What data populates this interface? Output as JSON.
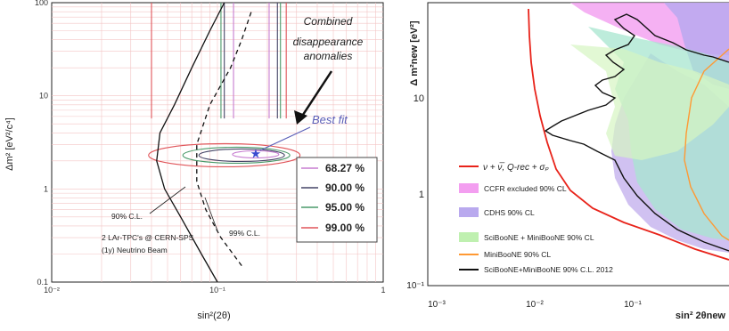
{
  "chart_data": [
    {
      "type": "line",
      "xlabel": "sin²(2θ)",
      "ylabel": "Δm² [eV²/c⁴]",
      "xscale": "log",
      "yscale": "log",
      "xlim": [
        0.01,
        1
      ],
      "ylim": [
        0.1,
        100
      ],
      "x_tick_labels": [
        "10⁻²",
        "10⁻¹",
        "1"
      ],
      "y_tick_labels": [
        "0.1",
        "1",
        "10",
        "100"
      ],
      "grid": true,
      "legend_position": "center-right",
      "legend": [
        {
          "label": "68.27 %",
          "color": "#c77dd1"
        },
        {
          "label": "90.00 %",
          "color": "#444466"
        },
        {
          "label": "95.00 %",
          "color": "#4a9a6a"
        },
        {
          "label": "99.00 %",
          "color": "#e0555a"
        }
      ],
      "annotations": {
        "anomalies": [
          "Combined",
          "disappearance",
          "anomalies"
        ],
        "best_fit": "Best fit",
        "cl90": "90% C.L.",
        "cl99": "99% C.L.",
        "experiment": [
          "2 LAr-TPC's @ CERN-SPS",
          "(1y) Neutrino Beam"
        ]
      },
      "best_fit_point": {
        "x": 0.17,
        "y": 2.4
      },
      "series": [
        {
          "name": "90% C.L.",
          "style": "solid",
          "color": "#111111",
          "points": [
            [
              0.1,
              0.1
            ],
            [
              0.08,
              0.2
            ],
            [
              0.06,
              0.5
            ],
            [
              0.048,
              1.0
            ],
            [
              0.043,
              2.0
            ],
            [
              0.045,
              4.0
            ],
            [
              0.055,
              8.0
            ],
            [
              0.07,
              20
            ],
            [
              0.09,
              50
            ],
            [
              0.11,
              100
            ]
          ]
        },
        {
          "name": "99% C.L.",
          "style": "dashed",
          "color": "#111111",
          "points": [
            [
              0.14,
              0.15
            ],
            [
              0.105,
              0.3
            ],
            [
              0.085,
              0.6
            ],
            [
              0.075,
              1.2
            ],
            [
              0.075,
              3.0
            ],
            [
              0.09,
              8.0
            ],
            [
              0.12,
              20
            ],
            [
              0.14,
              40
            ],
            [
              0.16,
              80
            ]
          ]
        }
      ]
    },
    {
      "type": "area",
      "xlabel": "sin² 2θnew",
      "ylabel": "Δ m²new [eV²]",
      "xscale": "log",
      "yscale": "log",
      "x_tick_labels": [
        "10⁻³",
        "10⁻²",
        "10⁻¹"
      ],
      "y_tick_labels": [
        "10⁻¹",
        "1",
        "10"
      ],
      "legend_position": "lower-left",
      "legend": [
        {
          "label": "ν + ν̅, Q-rec + σₚ",
          "color": "#e8231a",
          "kind": "line"
        },
        {
          "label": "CCFR excluded 90% CL",
          "color": "#f39ef0",
          "kind": "box"
        },
        {
          "label": "CDHS 90% CL",
          "color": "#b9a9ee",
          "kind": "box"
        },
        {
          "label": "SciBooNE + MiniBooNE 90% CL",
          "color": "#bff0b0",
          "kind": "box"
        },
        {
          "label": "MiniBooNE 90% CL",
          "color": "#ff9933",
          "kind": "line"
        },
        {
          "label": "SciBooNE+MiniBooNE 90% C.L. 2012",
          "color": "#111111",
          "kind": "line"
        }
      ]
    }
  ]
}
